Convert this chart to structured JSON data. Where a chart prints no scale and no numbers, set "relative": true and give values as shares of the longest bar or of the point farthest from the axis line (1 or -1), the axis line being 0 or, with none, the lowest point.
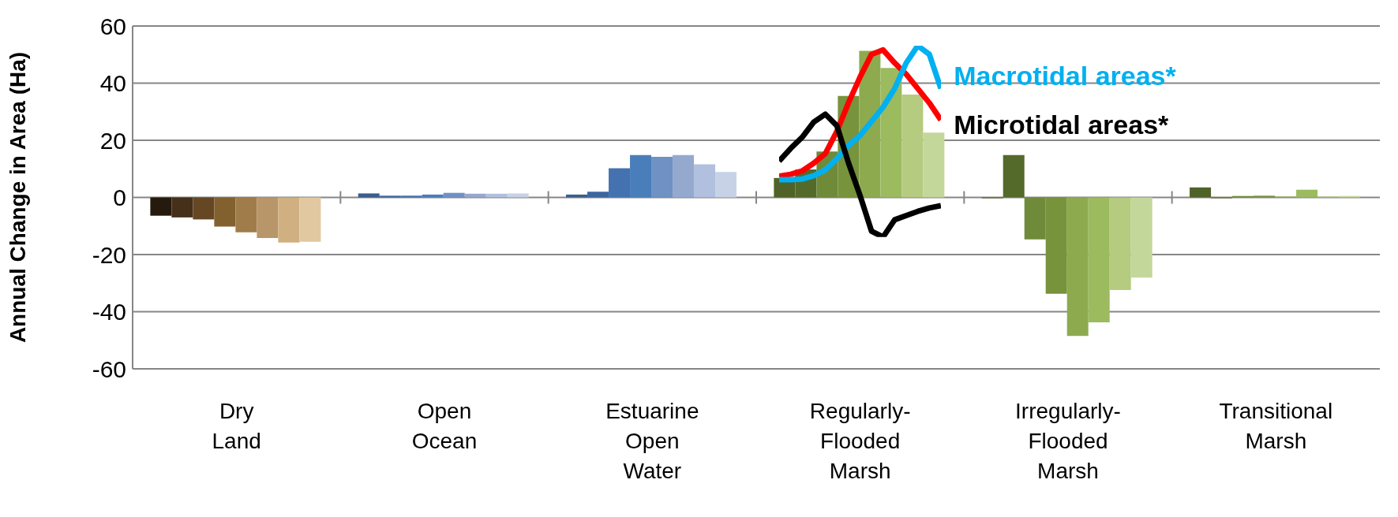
{
  "chart_data": [
    {
      "type": "bar",
      "ylabel": "Annual Change in Area (Ha)",
      "categories": [
        "Dry Land",
        "Open Ocean",
        "Estuarine Open Water",
        "Regularly-Flooded Marsh",
        "Irregularly-Flooded Marsh",
        "Transitional Marsh"
      ],
      "ylim": [
        -60,
        60
      ],
      "yticks": [
        -60,
        -40,
        -20,
        0,
        20,
        40,
        60
      ],
      "grid": "y",
      "series": [
        {
          "colors": [
            "#261a0e",
            "#3b5e8e",
            "#3b5e8e",
            "#4f6228",
            "#4f6228",
            "#4f6228"
          ],
          "values": [
            -6.4,
            1.4,
            1.0,
            6.8,
            -0.3,
            3.5
          ]
        },
        {
          "colors": [
            "#46301a",
            "#3d66a0",
            "#3d66a0",
            "#536a2b",
            "#536a2b",
            "#536a2b"
          ],
          "values": [
            -7.0,
            0.6,
            2.0,
            9.8,
            14.8,
            -0.3
          ]
        },
        {
          "colors": [
            "#654724",
            "#4472b0",
            "#4472b0",
            "#6f8b3a",
            "#6f8b3a",
            "#6f8b3a"
          ],
          "values": [
            -7.7,
            0.6,
            10.2,
            16.1,
            -14.7,
            0.5
          ]
        },
        {
          "colors": [
            "#83612f",
            "#4a7ebb",
            "#4a7ebb",
            "#77933c",
            "#77933c",
            "#77933c"
          ],
          "values": [
            -10.2,
            1.0,
            14.8,
            35.5,
            -33.7,
            0.6
          ]
        },
        {
          "colors": [
            "#a07c4a",
            "#6f91c4",
            "#6f91c4",
            "#8dab4e",
            "#8dab4e",
            "#8dab4e"
          ],
          "values": [
            -12.2,
            1.6,
            14.2,
            51.3,
            -48.5,
            0.3
          ]
        },
        {
          "colors": [
            "#b9956a",
            "#95a9cf",
            "#95a9cf",
            "#9cbb5e",
            "#9cbb5e",
            "#9cbb5e"
          ],
          "values": [
            -14.2,
            1.3,
            14.8,
            45.3,
            -43.7,
            2.7
          ]
        },
        {
          "colors": [
            "#d0b080",
            "#b0c0de",
            "#b0c0de",
            "#b4cb80",
            "#b4cb80",
            "#b4cb80"
          ],
          "values": [
            -15.8,
            1.3,
            11.6,
            36.0,
            -32.4,
            0.3
          ]
        },
        {
          "colors": [
            "#e1c8a0",
            "#c8d2e6",
            "#c8d2e6",
            "#c4d79b",
            "#c4d79b",
            "#c4d79b"
          ],
          "values": [
            -15.5,
            1.4,
            8.9,
            22.7,
            -28.1,
            0.5
          ]
        }
      ]
    },
    {
      "type": "line",
      "categories": [
        null,
        null,
        null,
        null,
        null,
        null,
        null,
        null,
        null,
        null,
        null,
        null,
        null,
        null,
        null
      ],
      "relative": true,
      "tick_labels": false,
      "series": [
        {
          "color": "#ff0000",
          "values": [
            0.318,
            0.328,
            0.346,
            0.386,
            0.436,
            0.552,
            0.701,
            0.836,
            0.955,
            0.978,
            0.91,
            0.851,
            0.776,
            0.701,
            0.612
          ]
        },
        {
          "name": "Macrotidal areas*",
          "color": "#00b0f0",
          "values": [
            0.3,
            0.3,
            0.303,
            0.321,
            0.351,
            0.41,
            0.478,
            0.53,
            0.604,
            0.679,
            0.776,
            0.91,
            1,
            0.955,
            0.776
          ]
        },
        {
          "name": "Microtidal areas*",
          "color": "#000000",
          "values": [
            0.397,
            0.463,
            0.522,
            0.601,
            0.642,
            0.582,
            0.388,
            0.218,
            0.03,
            0,
            0.09,
            0.112,
            0.134,
            0.152,
            0.164
          ]
        }
      ]
    }
  ]
}
